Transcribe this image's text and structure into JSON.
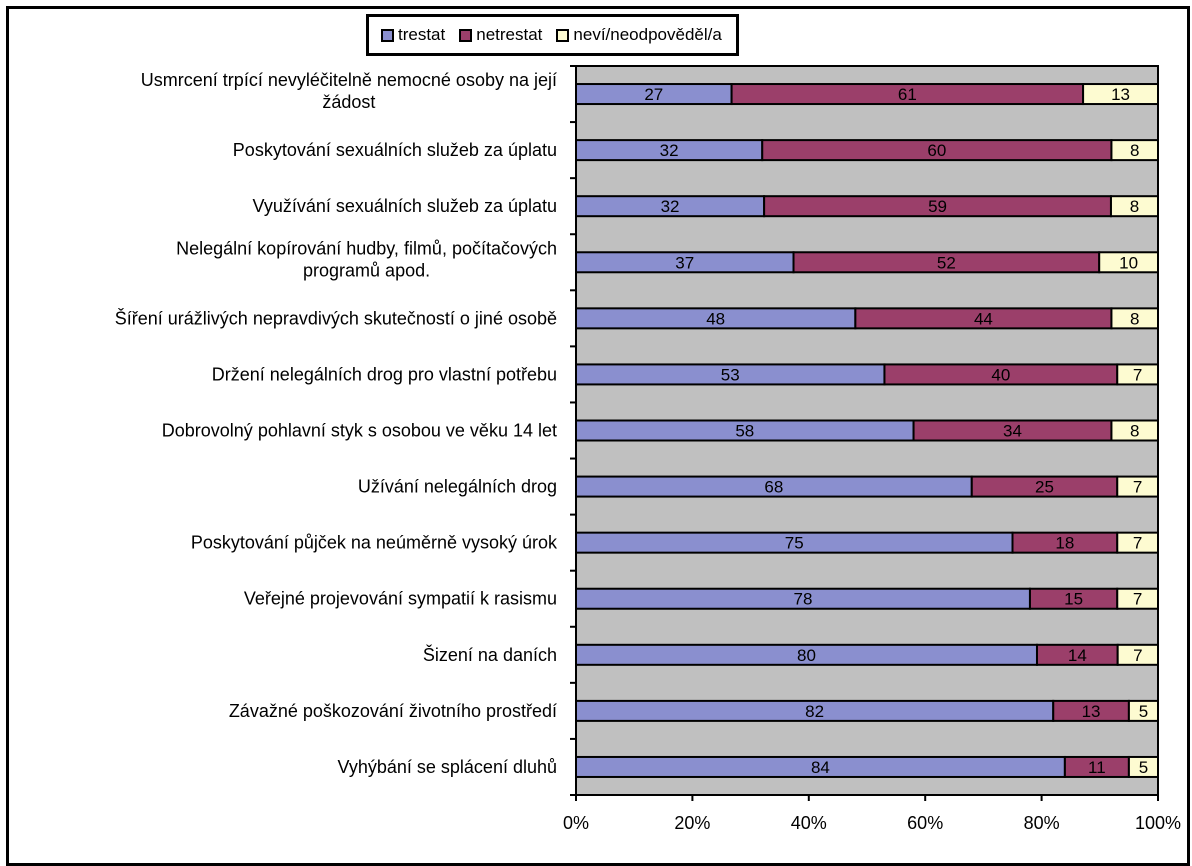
{
  "legend": {
    "items": [
      {
        "label": "trestat",
        "color": "#8a8fcf"
      },
      {
        "label": "netrestat",
        "color": "#9b3f6a"
      },
      {
        "label": "neví/neodpověděl/a",
        "color": "#fdfbd1"
      }
    ]
  },
  "colors": {
    "plot_bg": "#c0c0c0",
    "grid": "#000000"
  },
  "chart_data": {
    "type": "bar",
    "orientation": "horizontal",
    "stacked": true,
    "percent_stacked": true,
    "categories": [
      [
        "Usmrcení trpící nevyléčitelně nemocné osoby na její",
        "žádost"
      ],
      [
        "Poskytování sexuálních služeb za úplatu"
      ],
      [
        "Využívání sexuálních služeb za úplatu"
      ],
      [
        "Nelegální kopírování hudby, filmů, počítačových",
        "programů apod."
      ],
      [
        "Šíření urážlivých nepravdivých skutečností o jiné osobě"
      ],
      [
        "Držení nelegálních drog pro vlastní potřebu"
      ],
      [
        "Dobrovolný pohlavní styk s osobou ve věku 14 let"
      ],
      [
        "Užívání nelegálních drog"
      ],
      [
        "Poskytování půjček na neúměrně vysoký úrok"
      ],
      [
        "Veřejné projevování sympatií k rasismu"
      ],
      [
        "Šizení na daních"
      ],
      [
        "Závažné poškozování životního prostředí"
      ],
      [
        "Vyhýbání se splácení dluhů"
      ]
    ],
    "series": [
      {
        "name": "trestat",
        "values": [
          27,
          32,
          32,
          37,
          48,
          53,
          58,
          68,
          75,
          78,
          80,
          82,
          84
        ]
      },
      {
        "name": "netrestat",
        "values": [
          61,
          60,
          59,
          52,
          44,
          40,
          34,
          25,
          18,
          15,
          14,
          13,
          11
        ]
      },
      {
        "name": "neví/neodpověděl/a",
        "values": [
          13,
          8,
          8,
          10,
          8,
          7,
          8,
          7,
          7,
          7,
          7,
          5,
          5
        ]
      }
    ],
    "x_ticks": [
      "0%",
      "20%",
      "40%",
      "60%",
      "80%",
      "100%"
    ],
    "xlim": [
      0,
      100
    ],
    "legend_position": "top",
    "grid": false
  }
}
